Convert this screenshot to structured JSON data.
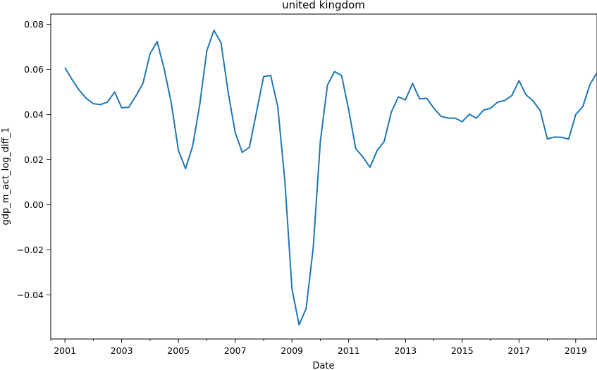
{
  "chart_data": {
    "type": "line",
    "title": "united kingdom",
    "xlabel": "Date",
    "ylabel": "gdp_m_act_log_diff_1",
    "xlim": [
      2000.5,
      2019.75
    ],
    "ylim": [
      -0.0595,
      0.0845
    ],
    "x_ticks": [
      {
        "value": 2001,
        "label": "2001"
      },
      {
        "value": 2003,
        "label": "2003"
      },
      {
        "value": 2005,
        "label": "2005"
      },
      {
        "value": 2007,
        "label": "2007"
      },
      {
        "value": 2009,
        "label": "2009"
      },
      {
        "value": 2011,
        "label": "2011"
      },
      {
        "value": 2013,
        "label": "2013"
      },
      {
        "value": 2015,
        "label": "2015"
      },
      {
        "value": 2017,
        "label": "2017"
      },
      {
        "value": 2019,
        "label": "2019"
      }
    ],
    "y_ticks": [
      {
        "value": 0.08,
        "label": "0.08"
      },
      {
        "value": 0.06,
        "label": "0.06"
      },
      {
        "value": 0.04,
        "label": "0.04"
      },
      {
        "value": 0.02,
        "label": "0.02"
      },
      {
        "value": 0.0,
        "label": "0.00"
      },
      {
        "value": -0.02,
        "label": "−0.02"
      },
      {
        "value": -0.04,
        "label": "−0.04"
      }
    ],
    "grid": false,
    "line_color": "#1f77b4",
    "series": [
      {
        "x": [
          2001.0,
          2001.25,
          2001.5,
          2001.75,
          2002.0,
          2002.25,
          2002.5,
          2002.75,
          2003.0,
          2003.25,
          2003.5,
          2003.75,
          2004.0,
          2004.25,
          2004.5,
          2004.75,
          2005.0,
          2005.25,
          2005.5,
          2005.75,
          2006.0,
          2006.25,
          2006.5,
          2006.75,
          2007.0,
          2007.25,
          2007.5,
          2007.75,
          2008.0,
          2008.25,
          2008.5,
          2008.75,
          2009.0,
          2009.25,
          2009.5,
          2009.75,
          2010.0,
          2010.25,
          2010.5,
          2010.75,
          2011.0,
          2011.25,
          2011.5,
          2011.75,
          2012.0,
          2012.25,
          2012.5,
          2012.75,
          2013.0,
          2013.25,
          2013.5,
          2013.75,
          2014.0,
          2014.25,
          2014.5,
          2014.75,
          2015.0,
          2015.25,
          2015.5,
          2015.75,
          2016.0,
          2016.25,
          2016.5,
          2016.75,
          2017.0,
          2017.25,
          2017.5,
          2017.75,
          2018.0,
          2018.25,
          2018.5,
          2018.75,
          2019.0,
          2019.25,
          2019.5,
          2019.75
        ],
        "values": [
          0.0608,
          0.0555,
          0.0508,
          0.0472,
          0.0448,
          0.0444,
          0.0455,
          0.05,
          0.043,
          0.0432,
          0.0482,
          0.0538,
          0.067,
          0.0723,
          0.06,
          0.045,
          0.024,
          0.016,
          0.026,
          0.0443,
          0.0683,
          0.0773,
          0.0718,
          0.05,
          0.032,
          0.0232,
          0.0255,
          0.041,
          0.0568,
          0.0573,
          0.0435,
          0.0106,
          -0.0372,
          -0.0532,
          -0.046,
          -0.019,
          0.028,
          0.053,
          0.059,
          0.0573,
          0.042,
          0.0248,
          0.0212,
          0.0166,
          0.024,
          0.028,
          0.041,
          0.0478,
          0.0465,
          0.0538,
          0.0469,
          0.0472,
          0.0428,
          0.0392,
          0.0384,
          0.0384,
          0.0368,
          0.0401,
          0.0384,
          0.0419,
          0.0428,
          0.0455,
          0.0462,
          0.0484,
          0.055,
          0.0487,
          0.046,
          0.0417,
          0.0292,
          0.03,
          0.0299,
          0.0291,
          0.04,
          0.0435,
          0.0533,
          0.0585
        ]
      }
    ]
  }
}
